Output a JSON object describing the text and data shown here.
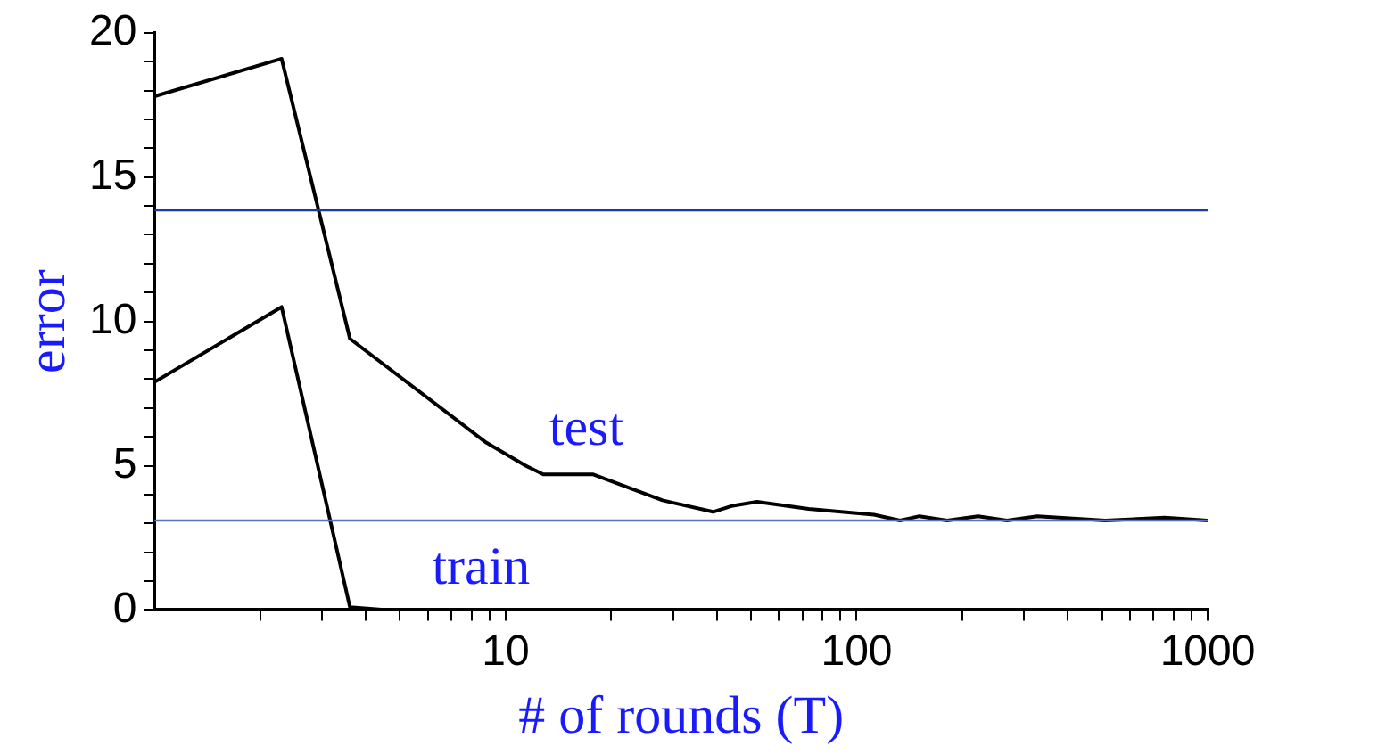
{
  "chart_data": {
    "type": "line",
    "xlabel": "# of rounds (T)",
    "ylabel": "error",
    "log": "x",
    "grid": false,
    "legend": false,
    "marker": "none",
    "line_style": "solid",
    "xlim": [
      1,
      1000
    ],
    "ylim": [
      0,
      20
    ],
    "xticks": [
      {
        "value": 2,
        "label": null
      },
      {
        "value": 3,
        "label": null
      },
      {
        "value": 4,
        "label": null
      },
      {
        "value": 5,
        "label": null
      },
      {
        "value": 6,
        "label": null
      },
      {
        "value": 7,
        "label": null
      },
      {
        "value": 8,
        "label": null
      },
      {
        "value": 9,
        "label": null
      },
      10,
      {
        "value": 20,
        "label": null
      },
      {
        "value": 30,
        "label": null
      },
      {
        "value": 40,
        "label": null
      },
      {
        "value": 50,
        "label": null
      },
      {
        "value": 60,
        "label": null
      },
      {
        "value": 70,
        "label": null
      },
      {
        "value": 80,
        "label": null
      },
      {
        "value": 90,
        "label": null
      },
      100,
      {
        "value": 200,
        "label": null
      },
      {
        "value": 300,
        "label": null
      },
      {
        "value": 400,
        "label": null
      },
      {
        "value": 500,
        "label": null
      },
      {
        "value": 600,
        "label": null
      },
      {
        "value": 700,
        "label": null
      },
      {
        "value": 800,
        "label": null
      },
      {
        "value": 900,
        "label": null
      },
      1000
    ],
    "yticks": [
      0,
      {
        "value": 1,
        "label": null
      },
      {
        "value": 2,
        "label": null
      },
      {
        "value": 3,
        "label": null
      },
      {
        "value": 4,
        "label": null
      },
      5,
      {
        "value": 6,
        "label": null
      },
      {
        "value": 7,
        "label": null
      },
      {
        "value": 8,
        "label": null
      },
      {
        "value": 9,
        "label": null
      },
      10,
      {
        "value": 11,
        "label": null
      },
      {
        "value": 12,
        "label": null
      },
      {
        "value": 13,
        "label": null
      },
      {
        "value": 14,
        "label": null
      },
      15,
      {
        "value": 16,
        "label": null
      },
      {
        "value": 17,
        "label": null
      },
      {
        "value": 18,
        "label": null
      },
      {
        "value": 19,
        "label": null
      },
      20
    ],
    "series": [
      {
        "name": "test",
        "color": "#000000",
        "x": [
          1,
          2.3,
          3.6,
          8.8,
          11.4,
          12.8,
          17.7,
          28,
          39,
          44,
          52,
          73,
          112,
          133,
          151,
          181,
          222,
          268,
          327,
          511,
          755,
          1000
        ],
        "values": [
          17.8,
          19.1,
          9.4,
          5.8,
          5.0,
          4.7,
          4.7,
          3.8,
          3.4,
          3.6,
          3.75,
          3.5,
          3.3,
          3.1,
          3.25,
          3.1,
          3.25,
          3.1,
          3.25,
          3.1,
          3.2,
          3.1
        ]
      },
      {
        "name": "train",
        "color": "#000000",
        "x": [
          1,
          2.3,
          3.6,
          4.6,
          10,
          100,
          1000
        ],
        "values": [
          7.9,
          10.5,
          0.1,
          0,
          0,
          0,
          0
        ]
      }
    ],
    "ref_lines": [
      {
        "axis": "y",
        "value": 13.85,
        "color": "#1f3a9e"
      },
      {
        "axis": "y",
        "value": 3.1,
        "color": "#5a70c0"
      }
    ]
  }
}
